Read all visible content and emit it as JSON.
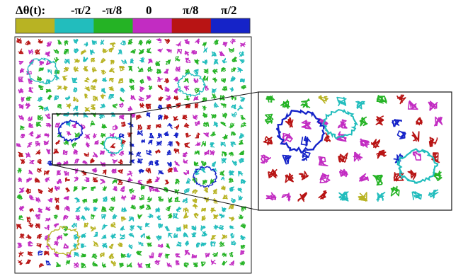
{
  "legend": {
    "title_prefix": "Δθ(t):",
    "labels": [
      "-π/2",
      "-π/8",
      "0",
      "π/8",
      "π/2"
    ],
    "colors": [
      "#b8b323",
      "#22bdbd",
      "#25b325",
      "#c22cc2",
      "#b81414",
      "#1523c8"
    ]
  },
  "panels": {
    "main": {
      "description_name": "trajectory-field"
    },
    "inset": {
      "description_name": "zoomed-region"
    }
  }
}
